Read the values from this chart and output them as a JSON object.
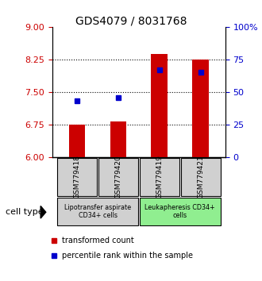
{
  "title": "GDS4079 / 8031768",
  "samples": [
    "GSM779418",
    "GSM779420",
    "GSM779419",
    "GSM779421"
  ],
  "transformed_counts": [
    6.76,
    6.82,
    8.38,
    8.25
  ],
  "percentile_ranks": [
    43,
    46,
    67,
    65
  ],
  "ylim_left": [
    6,
    9
  ],
  "ylim_right": [
    0,
    100
  ],
  "yticks_left": [
    6,
    6.75,
    7.5,
    8.25,
    9
  ],
  "yticks_right": [
    0,
    25,
    50,
    75,
    100
  ],
  "ytick_labels_right": [
    "0",
    "25",
    "50",
    "75",
    "100%"
  ],
  "bar_color": "#cc0000",
  "dot_color": "#0000cc",
  "bar_width": 0.4,
  "groups": [
    {
      "label": "Lipotransfer aspirate\nCD34+ cells",
      "sample_indices": [
        0,
        1
      ],
      "color": "#d0d0d0"
    },
    {
      "label": "Leukapheresis CD34+\ncells",
      "sample_indices": [
        2,
        3
      ],
      "color": "#90ee90"
    }
  ],
  "legend_items": [
    {
      "color": "#cc0000",
      "label": "transformed count"
    },
    {
      "color": "#0000cc",
      "label": "percentile rank within the sample"
    }
  ],
  "cell_type_label": "cell type",
  "left_tick_color": "#cc0000",
  "right_tick_color": "#0000cc"
}
